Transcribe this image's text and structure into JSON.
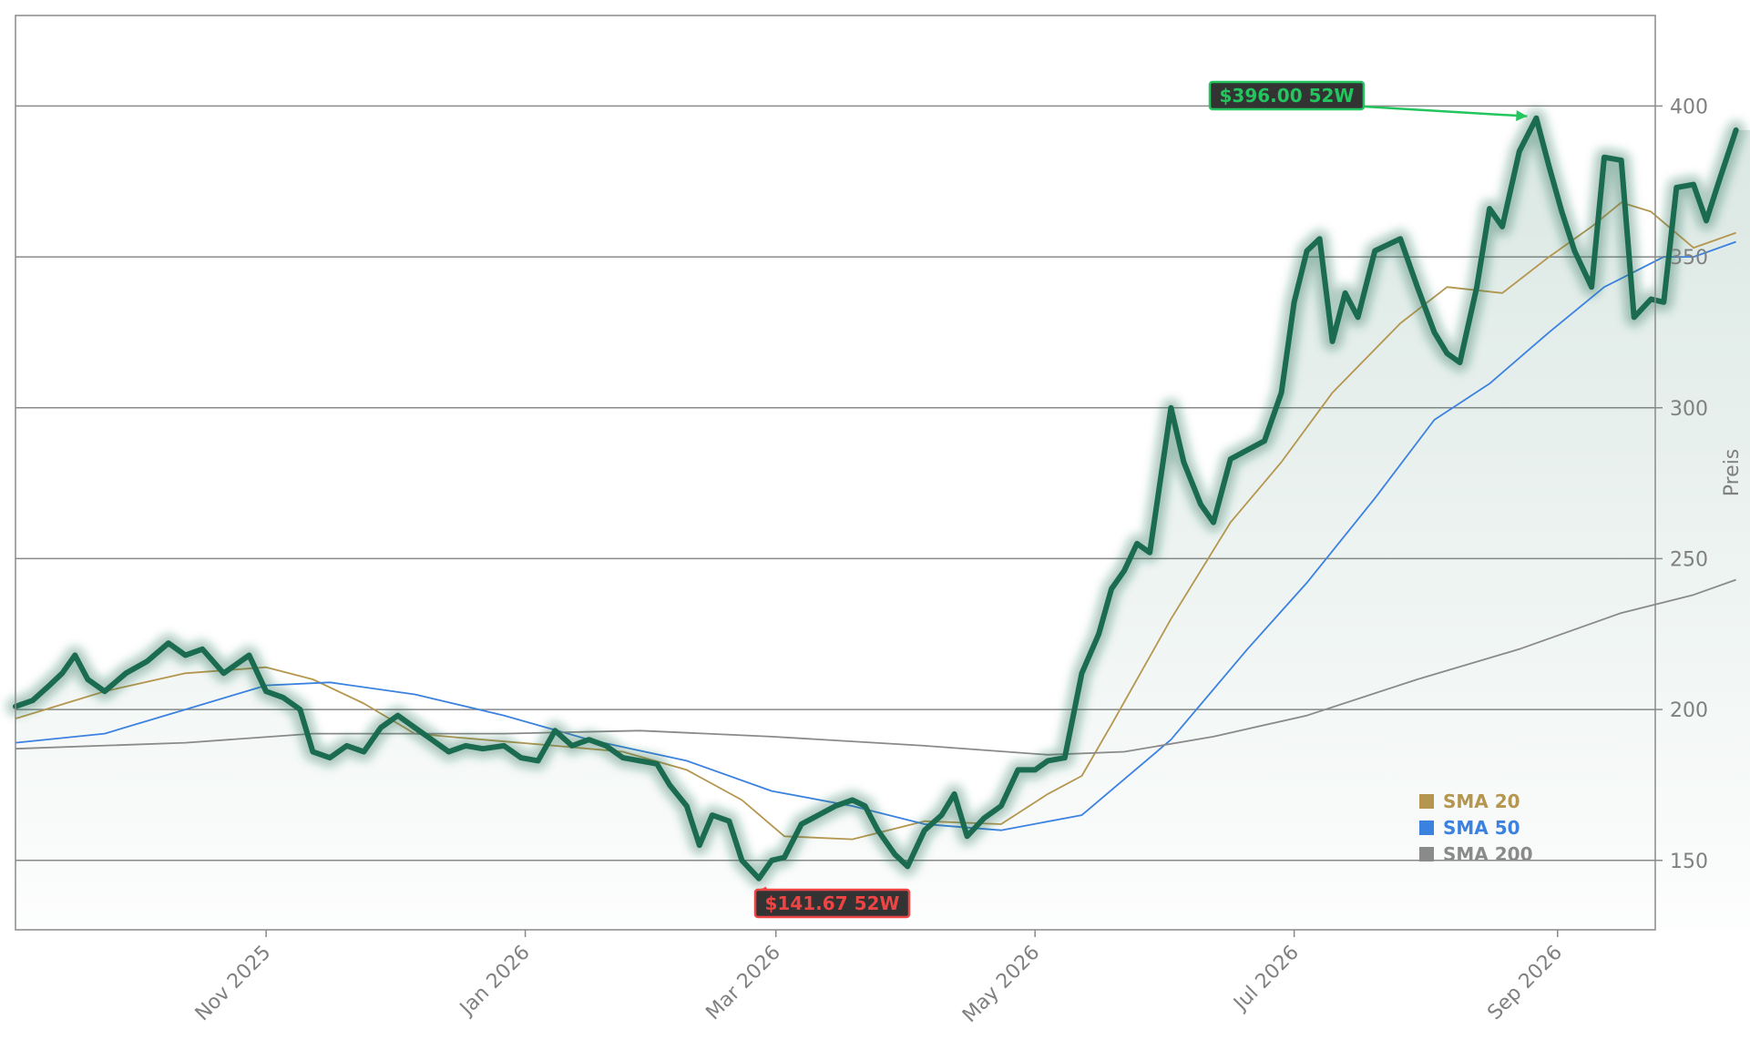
{
  "chart_data": {
    "type": "line",
    "title": "",
    "xlabel": "",
    "ylabel": "Preis",
    "xlim": [
      "2025-09-03",
      "2026-09-24"
    ],
    "ylim": [
      127,
      430
    ],
    "grid": "horizontal",
    "legend_placement": "bottom-right",
    "x_ticks": [
      {
        "date": "2025-11-01",
        "label": "Nov 2025"
      },
      {
        "date": "2026-01-01",
        "label": "Jan 2026"
      },
      {
        "date": "2026-03-01",
        "label": "Mar 2026"
      },
      {
        "date": "2026-05-01",
        "label": "May 2026"
      },
      {
        "date": "2026-07-01",
        "label": "Jul 2026"
      },
      {
        "date": "2026-09-01",
        "label": "Sep 2026"
      }
    ],
    "y_ticks": [
      150,
      200,
      250,
      300,
      350,
      400
    ],
    "price": {
      "color": "#1a6b4f",
      "points": [
        [
          "2025-09-03",
          201
        ],
        [
          "2025-09-07",
          203
        ],
        [
          "2025-09-11",
          208
        ],
        [
          "2025-09-14",
          212
        ],
        [
          "2025-09-17",
          218
        ],
        [
          "2025-09-20",
          210
        ],
        [
          "2025-09-24",
          206
        ],
        [
          "2025-09-29",
          212
        ],
        [
          "2025-10-04",
          216
        ],
        [
          "2025-10-09",
          222
        ],
        [
          "2025-10-13",
          218
        ],
        [
          "2025-10-17",
          220
        ],
        [
          "2025-10-22",
          212
        ],
        [
          "2025-10-28",
          218
        ],
        [
          "2025-11-01",
          206
        ],
        [
          "2025-11-05",
          204
        ],
        [
          "2025-11-09",
          200
        ],
        [
          "2025-11-12",
          186
        ],
        [
          "2025-11-16",
          184
        ],
        [
          "2025-11-20",
          188
        ],
        [
          "2025-11-24",
          186
        ],
        [
          "2025-11-28",
          194
        ],
        [
          "2025-12-02",
          198
        ],
        [
          "2025-12-06",
          194
        ],
        [
          "2025-12-10",
          190
        ],
        [
          "2025-12-14",
          186
        ],
        [
          "2025-12-18",
          188
        ],
        [
          "2025-12-22",
          187
        ],
        [
          "2025-12-27",
          188
        ],
        [
          "2025-12-31",
          184
        ],
        [
          "2026-01-04",
          183
        ],
        [
          "2026-01-08",
          193
        ],
        [
          "2026-01-12",
          188
        ],
        [
          "2026-01-16",
          190
        ],
        [
          "2026-01-20",
          188
        ],
        [
          "2026-01-24",
          184
        ],
        [
          "2026-01-28",
          183
        ],
        [
          "2026-02-01",
          182
        ],
        [
          "2026-02-04",
          175
        ],
        [
          "2026-02-08",
          168
        ],
        [
          "2026-02-11",
          155
        ],
        [
          "2026-02-14",
          165
        ],
        [
          "2026-02-18",
          163
        ],
        [
          "2026-02-21",
          150
        ],
        [
          "2026-02-25",
          144
        ],
        [
          "2026-02-28",
          150
        ],
        [
          "2026-03-03",
          151
        ],
        [
          "2026-03-07",
          162
        ],
        [
          "2026-03-11",
          165
        ],
        [
          "2026-03-15",
          168
        ],
        [
          "2026-03-19",
          170
        ],
        [
          "2026-03-22",
          168
        ],
        [
          "2026-03-25",
          160
        ],
        [
          "2026-03-29",
          152
        ],
        [
          "2026-04-01",
          148
        ],
        [
          "2026-04-05",
          160
        ],
        [
          "2026-04-09",
          165
        ],
        [
          "2026-04-12",
          172
        ],
        [
          "2026-04-15",
          158
        ],
        [
          "2026-04-19",
          164
        ],
        [
          "2026-04-23",
          168
        ],
        [
          "2026-04-27",
          180
        ],
        [
          "2026-05-01",
          180
        ],
        [
          "2026-05-04",
          183
        ],
        [
          "2026-05-08",
          184
        ],
        [
          "2026-05-12",
          212
        ],
        [
          "2026-05-16",
          225
        ],
        [
          "2026-05-19",
          240
        ],
        [
          "2026-05-22",
          246
        ],
        [
          "2026-05-25",
          255
        ],
        [
          "2026-05-28",
          252
        ],
        [
          "2026-06-02",
          300
        ],
        [
          "2026-06-05",
          282
        ],
        [
          "2026-06-09",
          268
        ],
        [
          "2026-06-12",
          262
        ],
        [
          "2026-06-16",
          283
        ],
        [
          "2026-06-20",
          286
        ],
        [
          "2026-06-24",
          289
        ],
        [
          "2026-06-28",
          305
        ],
        [
          "2026-07-01",
          335
        ],
        [
          "2026-07-04",
          352
        ],
        [
          "2026-07-07",
          356
        ],
        [
          "2026-07-10",
          322
        ],
        [
          "2026-07-13",
          338
        ],
        [
          "2026-07-16",
          330
        ],
        [
          "2026-07-20",
          352
        ],
        [
          "2026-07-23",
          354
        ],
        [
          "2026-07-26",
          356
        ],
        [
          "2026-07-30",
          340
        ],
        [
          "2026-08-03",
          325
        ],
        [
          "2026-08-06",
          318
        ],
        [
          "2026-08-09",
          315
        ],
        [
          "2026-08-13",
          340
        ],
        [
          "2026-08-16",
          366
        ],
        [
          "2026-08-19",
          360
        ],
        [
          "2026-08-23",
          385
        ],
        [
          "2026-08-27",
          396
        ],
        [
          "2026-08-30",
          380
        ],
        [
          "2026-09-02",
          365
        ],
        [
          "2026-09-05",
          352
        ],
        [
          "2026-09-09",
          340
        ],
        [
          "2026-09-12",
          383
        ],
        [
          "2026-09-16",
          382
        ],
        [
          "2026-09-19",
          330
        ],
        [
          "2026-09-23",
          336
        ],
        [
          "2026-09-26",
          335
        ],
        [
          "2026-09-29",
          373
        ],
        [
          "2026-10-03",
          374
        ],
        [
          "2026-10-06",
          362
        ],
        [
          "2026-10-09",
          375
        ],
        [
          "2026-10-13",
          392
        ]
      ]
    },
    "series": [
      {
        "name": "SMA 20",
        "color": "#b5964e",
        "points": [
          [
            "2025-09-03",
            197
          ],
          [
            "2025-09-24",
            206
          ],
          [
            "2025-10-13",
            212
          ],
          [
            "2025-11-01",
            214
          ],
          [
            "2025-11-12",
            210
          ],
          [
            "2025-11-24",
            202
          ],
          [
            "2025-12-06",
            192
          ],
          [
            "2025-12-22",
            190
          ],
          [
            "2026-01-08",
            188
          ],
          [
            "2026-01-24",
            186
          ],
          [
            "2026-02-08",
            180
          ],
          [
            "2026-02-21",
            170
          ],
          [
            "2026-03-03",
            158
          ],
          [
            "2026-03-19",
            157
          ],
          [
            "2026-04-05",
            163
          ],
          [
            "2026-04-23",
            162
          ],
          [
            "2026-05-04",
            172
          ],
          [
            "2026-05-12",
            178
          ],
          [
            "2026-05-19",
            195
          ],
          [
            "2026-06-02",
            230
          ],
          [
            "2026-06-16",
            262
          ],
          [
            "2026-06-28",
            282
          ],
          [
            "2026-07-10",
            305
          ],
          [
            "2026-07-26",
            328
          ],
          [
            "2026-08-06",
            340
          ],
          [
            "2026-08-19",
            338
          ],
          [
            "2026-08-30",
            350
          ],
          [
            "2026-09-09",
            360
          ],
          [
            "2026-09-16",
            368
          ],
          [
            "2026-09-23",
            365
          ],
          [
            "2026-10-03",
            353
          ],
          [
            "2026-10-13",
            358
          ]
        ]
      },
      {
        "name": "SMA 50",
        "color": "#3b82e0",
        "points": [
          [
            "2025-09-03",
            189
          ],
          [
            "2025-09-24",
            192
          ],
          [
            "2025-10-13",
            200
          ],
          [
            "2025-11-01",
            208
          ],
          [
            "2025-11-16",
            209
          ],
          [
            "2025-12-06",
            205
          ],
          [
            "2025-12-27",
            198
          ],
          [
            "2026-01-16",
            190
          ],
          [
            "2026-02-08",
            183
          ],
          [
            "2026-02-28",
            173
          ],
          [
            "2026-03-19",
            168
          ],
          [
            "2026-04-05",
            162
          ],
          [
            "2026-04-23",
            160
          ],
          [
            "2026-05-12",
            165
          ],
          [
            "2026-06-02",
            190
          ],
          [
            "2026-06-20",
            220
          ],
          [
            "2026-07-04",
            242
          ],
          [
            "2026-07-20",
            270
          ],
          [
            "2026-08-03",
            296
          ],
          [
            "2026-08-16",
            308
          ],
          [
            "2026-08-30",
            325
          ],
          [
            "2026-09-12",
            340
          ],
          [
            "2026-09-26",
            350
          ],
          [
            "2026-10-03",
            350
          ],
          [
            "2026-10-13",
            355
          ]
        ]
      },
      {
        "name": "SMA 200",
        "color": "#8a8a8a",
        "points": [
          [
            "2025-09-03",
            187
          ],
          [
            "2025-10-13",
            189
          ],
          [
            "2025-11-12",
            192
          ],
          [
            "2025-12-27",
            192
          ],
          [
            "2026-01-28",
            193
          ],
          [
            "2026-02-28",
            191
          ],
          [
            "2026-04-05",
            188
          ],
          [
            "2026-05-04",
            185
          ],
          [
            "2026-05-22",
            186
          ],
          [
            "2026-06-12",
            191
          ],
          [
            "2026-07-04",
            198
          ],
          [
            "2026-07-30",
            210
          ],
          [
            "2026-08-23",
            220
          ],
          [
            "2026-09-16",
            232
          ],
          [
            "2026-10-03",
            238
          ],
          [
            "2026-10-13",
            243
          ]
        ]
      }
    ],
    "annotations": [
      {
        "label": "$396.00 52W",
        "date": "2026-08-27",
        "value": 396,
        "color": "#22c55e"
      },
      {
        "label": "$141.67 52W",
        "date": "2026-02-25",
        "value": 141.67,
        "color": "#ef4444"
      }
    ]
  }
}
